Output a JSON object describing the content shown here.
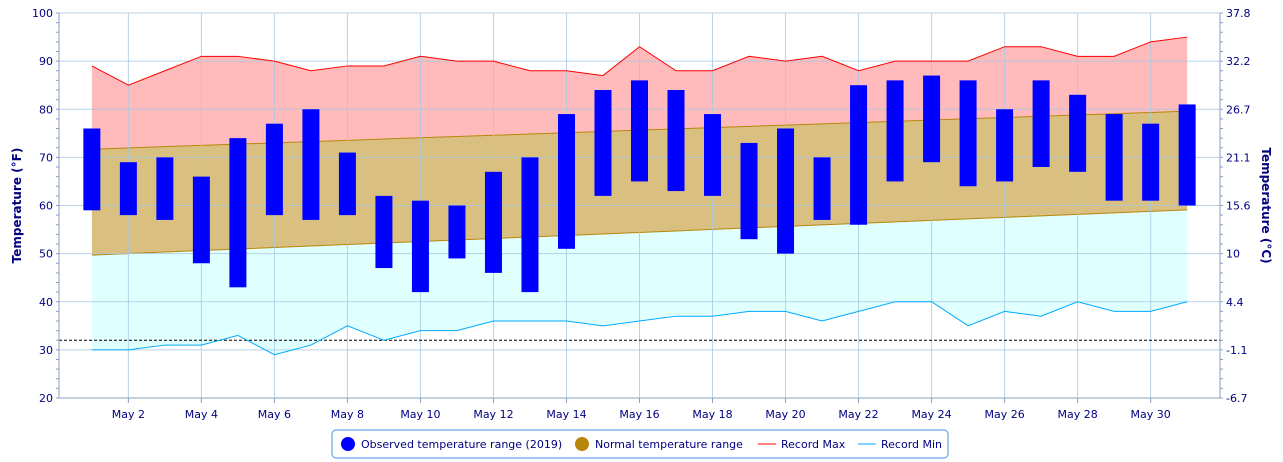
{
  "chart_data": {
    "type": "bar",
    "title": "",
    "x_tick_labels": [
      "May 2",
      "May 4",
      "May 6",
      "May 8",
      "May 10",
      "May 12",
      "May 14",
      "May 16",
      "May 18",
      "May 20",
      "May 22",
      "May 24",
      "May 26",
      "May 28",
      "May 30"
    ],
    "x_tick_days": [
      2,
      4,
      6,
      8,
      10,
      12,
      14,
      16,
      18,
      20,
      22,
      24,
      26,
      28,
      30
    ],
    "days": [
      1,
      2,
      3,
      4,
      5,
      6,
      7,
      8,
      9,
      10,
      11,
      12,
      13,
      14,
      15,
      16,
      17,
      18,
      19,
      20,
      21,
      22,
      23,
      24,
      25,
      26,
      27,
      28,
      29,
      30,
      31
    ],
    "xlim": [
      0.1,
      31.9
    ],
    "y_left": {
      "label": "Temperature (°F)",
      "lim": [
        20,
        100
      ],
      "ticks": [
        "20",
        "30",
        "40",
        "50",
        "60",
        "70",
        "80",
        "90",
        "100"
      ],
      "tick_values": [
        20,
        30,
        40,
        50,
        60,
        70,
        80,
        90,
        100
      ]
    },
    "y_right": {
      "label": "Temperature (°C)",
      "ticks": [
        "-6.7",
        "-1.1",
        "4.4",
        "10",
        "15.6",
        "21.1",
        "26.7",
        "32.2",
        "37.8"
      ],
      "tick_values_f": [
        20,
        30,
        40,
        50,
        60,
        70,
        80,
        90,
        100
      ]
    },
    "freezing_line_f": 32,
    "series": [
      {
        "name": "Observed temperature range (2019)",
        "color": "#0000ff",
        "low": [
          59,
          58,
          57,
          48,
          43,
          58,
          57,
          58,
          47,
          42,
          49,
          46,
          42,
          51,
          62,
          65,
          63,
          62,
          53,
          50,
          57,
          56,
          65,
          69,
          64,
          65,
          68,
          67,
          61,
          61,
          60
        ],
        "high": [
          76,
          69,
          70,
          66,
          74,
          77,
          80,
          71,
          62,
          61,
          60,
          67,
          70,
          79,
          84,
          86,
          84,
          79,
          73,
          76,
          70,
          85,
          86,
          87,
          86,
          80,
          86,
          83,
          79,
          77,
          81
        ]
      },
      {
        "name": "Normal temperature range",
        "color": "#b8860b",
        "low_start": 49.7,
        "low_end": 59.1,
        "high_start": 71.7,
        "high_end": 79.6
      },
      {
        "name": "Record Max",
        "color": "#ff0000",
        "values": [
          89,
          85,
          88,
          91,
          91,
          90,
          88,
          89,
          89,
          91,
          90,
          90,
          88,
          88,
          87,
          93,
          88,
          88,
          91,
          90,
          91,
          88,
          90,
          90,
          90,
          93,
          93,
          91,
          91,
          94,
          95
        ]
      },
      {
        "name": "Record Min",
        "color": "#00aaff",
        "values": [
          30,
          30,
          31,
          31,
          33,
          29,
          31,
          35,
          32,
          34,
          34,
          36,
          36,
          36,
          35,
          36,
          37,
          37,
          38,
          38,
          36,
          38,
          40,
          40,
          35,
          38,
          37,
          40,
          38,
          38,
          40
        ]
      }
    ],
    "legend_placement": "bottom-center",
    "grid": true
  }
}
